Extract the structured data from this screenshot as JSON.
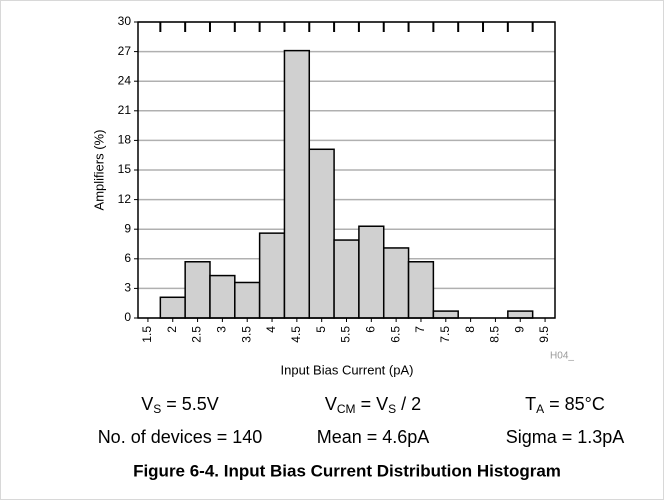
{
  "chart_data": {
    "type": "histogram",
    "y_label": "Amplifiers (%)",
    "x_label": "Input Bias Current (pA)",
    "code": "H04_",
    "bins": [
      1.75,
      2.25,
      2.75,
      3.25,
      3.75,
      4.25,
      4.75,
      5.25,
      5.75,
      6.25,
      6.75,
      7.25,
      7.75,
      8.25,
      8.75,
      9.25
    ],
    "values": [
      2.1,
      5.7,
      4.3,
      3.6,
      8.6,
      27.1,
      17.1,
      7.9,
      9.3,
      7.1,
      5.7,
      0.7,
      0,
      0,
      0.7
    ],
    "color": "#d0d0d0",
    "xlim": [
      1.3,
      9.7
    ],
    "xticks": [
      1.5,
      2,
      2.5,
      3,
      3.5,
      4,
      4.5,
      5,
      5.5,
      6,
      6.5,
      7,
      7.5,
      8,
      8.5,
      9,
      9.5
    ],
    "ylim": [
      0,
      30
    ],
    "yticks": [
      0,
      3,
      6,
      9,
      12,
      15,
      18,
      21,
      24,
      27,
      30
    ],
    "grid": true,
    "annotations": [
      [
        [
          "V",
          "S",
          " = 5.5V"
        ],
        [
          "V",
          "CM",
          " = V",
          "S",
          " / 2"
        ],
        [
          "T",
          "A",
          " = 85°C"
        ]
      ],
      [
        [
          "No. of devices = 140"
        ],
        [
          "Mean = 4.6pA"
        ],
        [
          "Sigma = 1.3pA"
        ]
      ]
    ],
    "caption": "Figure 6-4. Input Bias Current Distribution Histogram"
  }
}
